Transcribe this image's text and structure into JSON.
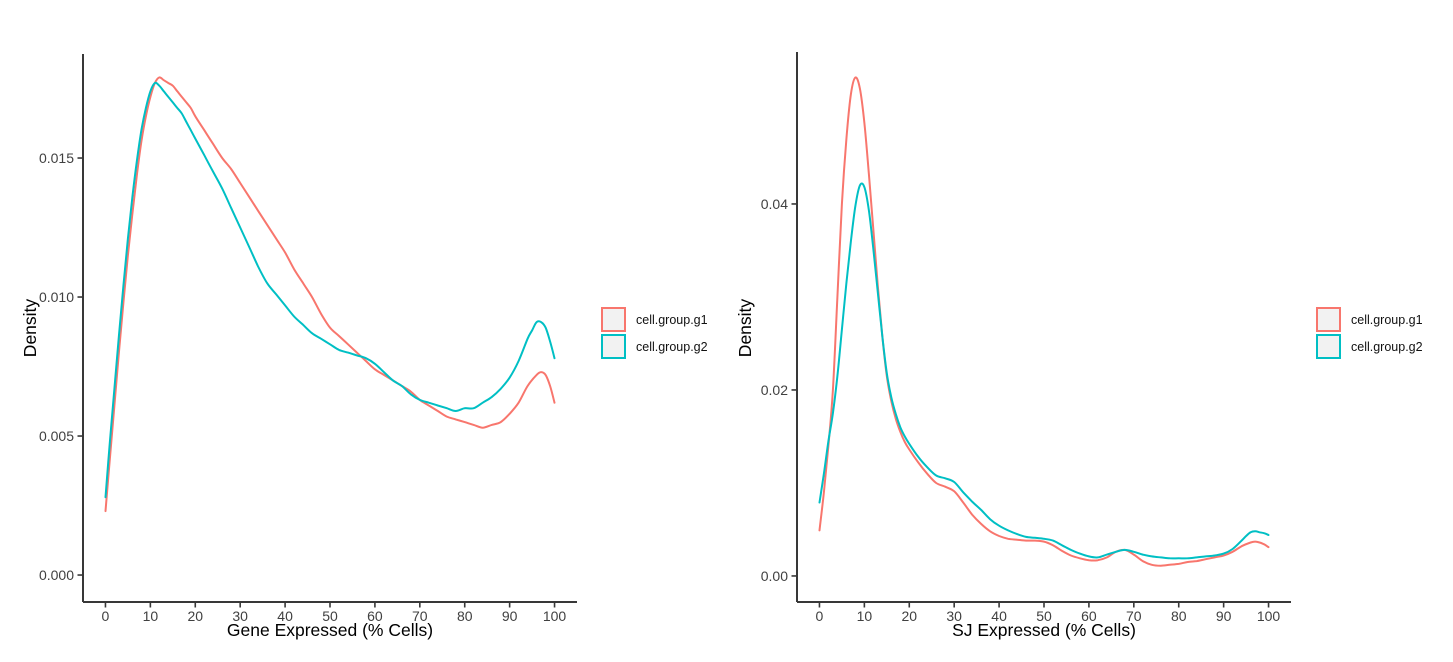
{
  "colors": {
    "g1": "#F8766D",
    "g2": "#00BFC4",
    "axis_line": "#383838",
    "tick_label": "#404040",
    "axis_title": "#000000",
    "legend_key_fill": "#F2F2F2",
    "background": "#FFFFFF"
  },
  "chart_data": [
    {
      "type": "line",
      "subtype": "density",
      "title": "",
      "xlabel": "Gene Expressed (% Cells)",
      "ylabel": "Density",
      "xlim": [
        0,
        100
      ],
      "ylim": [
        0,
        0.0179
      ],
      "grid": false,
      "xticks": [
        0,
        10,
        20,
        30,
        40,
        50,
        60,
        70,
        80,
        90,
        100
      ],
      "yticks": [
        0,
        0.005,
        0.01,
        0.015
      ],
      "ytick_labels": [
        "0.000",
        "0.005",
        "0.010",
        "0.015"
      ],
      "legend": {
        "position": "right",
        "items": [
          {
            "label": "cell.group.g1",
            "color": "#F8766D"
          },
          {
            "label": "cell.group.g2",
            "color": "#00BFC4"
          }
        ]
      },
      "series": [
        {
          "name": "cell.group.g1",
          "color": "#F8766D",
          "points": [
            [
              0,
              0.0023
            ],
            [
              1,
              0.0042
            ],
            [
              2,
              0.0061
            ],
            [
              3,
              0.008
            ],
            [
              4,
              0.0098
            ],
            [
              5,
              0.0115
            ],
            [
              6,
              0.013
            ],
            [
              7,
              0.0144
            ],
            [
              8,
              0.0156
            ],
            [
              9,
              0.0165
            ],
            [
              10,
              0.0172
            ],
            [
              11,
              0.0177
            ],
            [
              12,
              0.0179
            ],
            [
              13,
              0.0178
            ],
            [
              14,
              0.0177
            ],
            [
              15,
              0.0176
            ],
            [
              16,
              0.0174
            ],
            [
              17,
              0.0172
            ],
            [
              18,
              0.017
            ],
            [
              19,
              0.0168
            ],
            [
              20,
              0.0165
            ],
            [
              22,
              0.016
            ],
            [
              24,
              0.0155
            ],
            [
              26,
              0.015
            ],
            [
              28,
              0.0146
            ],
            [
              30,
              0.0141
            ],
            [
              32,
              0.0136
            ],
            [
              34,
              0.0131
            ],
            [
              36,
              0.0126
            ],
            [
              38,
              0.0121
            ],
            [
              40,
              0.0116
            ],
            [
              42,
              0.011
            ],
            [
              44,
              0.0105
            ],
            [
              46,
              0.01
            ],
            [
              48,
              0.0094
            ],
            [
              50,
              0.0089
            ],
            [
              52,
              0.0086
            ],
            [
              54,
              0.0083
            ],
            [
              56,
              0.008
            ],
            [
              58,
              0.0077
            ],
            [
              60,
              0.0074
            ],
            [
              62,
              0.0072
            ],
            [
              64,
              0.007
            ],
            [
              66,
              0.0068
            ],
            [
              68,
              0.0066
            ],
            [
              70,
              0.0063
            ],
            [
              72,
              0.0061
            ],
            [
              74,
              0.0059
            ],
            [
              76,
              0.0057
            ],
            [
              78,
              0.0056
            ],
            [
              80,
              0.0055
            ],
            [
              82,
              0.0054
            ],
            [
              84,
              0.0053
            ],
            [
              86,
              0.0054
            ],
            [
              88,
              0.0055
            ],
            [
              90,
              0.0058
            ],
            [
              92,
              0.0062
            ],
            [
              94,
              0.0068
            ],
            [
              96,
              0.0072
            ],
            [
              97,
              0.0073
            ],
            [
              98,
              0.0072
            ],
            [
              99,
              0.0068
            ],
            [
              100,
              0.0062
            ]
          ]
        },
        {
          "name": "cell.group.g2",
          "color": "#00BFC4",
          "points": [
            [
              0,
              0.0028
            ],
            [
              1,
              0.0048
            ],
            [
              2,
              0.0067
            ],
            [
              3,
              0.0086
            ],
            [
              4,
              0.0104
            ],
            [
              5,
              0.0121
            ],
            [
              6,
              0.0136
            ],
            [
              7,
              0.0149
            ],
            [
              8,
              0.016
            ],
            [
              9,
              0.0168
            ],
            [
              10,
              0.0174
            ],
            [
              11,
              0.0177
            ],
            [
              12,
              0.0176
            ],
            [
              13,
              0.0174
            ],
            [
              14,
              0.0172
            ],
            [
              15,
              0.017
            ],
            [
              16,
              0.0168
            ],
            [
              17,
              0.0166
            ],
            [
              18,
              0.0163
            ],
            [
              19,
              0.016
            ],
            [
              20,
              0.0157
            ],
            [
              22,
              0.0151
            ],
            [
              24,
              0.0145
            ],
            [
              26,
              0.0139
            ],
            [
              28,
              0.0132
            ],
            [
              30,
              0.0125
            ],
            [
              32,
              0.0118
            ],
            [
              34,
              0.0111
            ],
            [
              36,
              0.0105
            ],
            [
              38,
              0.0101
            ],
            [
              40,
              0.0097
            ],
            [
              42,
              0.0093
            ],
            [
              44,
              0.009
            ],
            [
              46,
              0.0087
            ],
            [
              48,
              0.0085
            ],
            [
              50,
              0.0083
            ],
            [
              52,
              0.0081
            ],
            [
              54,
              0.008
            ],
            [
              56,
              0.0079
            ],
            [
              58,
              0.0078
            ],
            [
              60,
              0.0076
            ],
            [
              62,
              0.0073
            ],
            [
              64,
              0.007
            ],
            [
              66,
              0.0068
            ],
            [
              68,
              0.0065
            ],
            [
              70,
              0.0063
            ],
            [
              72,
              0.0062
            ],
            [
              74,
              0.0061
            ],
            [
              76,
              0.006
            ],
            [
              78,
              0.0059
            ],
            [
              80,
              0.006
            ],
            [
              82,
              0.006
            ],
            [
              84,
              0.0062
            ],
            [
              86,
              0.0064
            ],
            [
              88,
              0.0067
            ],
            [
              90,
              0.0071
            ],
            [
              92,
              0.0077
            ],
            [
              94,
              0.0085
            ],
            [
              95,
              0.0088
            ],
            [
              96,
              0.0091
            ],
            [
              97,
              0.0091
            ],
            [
              98,
              0.0089
            ],
            [
              99,
              0.0084
            ],
            [
              100,
              0.0078
            ]
          ]
        }
      ]
    },
    {
      "type": "line",
      "subtype": "density",
      "title": "",
      "xlabel": "SJ Expressed (% Cells)",
      "ylabel": "Density",
      "xlim": [
        0,
        100
      ],
      "ylim": [
        0,
        0.0536
      ],
      "grid": false,
      "xticks": [
        0,
        10,
        20,
        30,
        40,
        50,
        60,
        70,
        80,
        90,
        100
      ],
      "yticks": [
        0,
        0.02,
        0.04
      ],
      "ytick_labels": [
        "0.00",
        "0.02",
        "0.04"
      ],
      "legend": {
        "position": "right",
        "items": [
          {
            "label": "cell.group.g1",
            "color": "#F8766D"
          },
          {
            "label": "cell.group.g2",
            "color": "#00BFC4"
          }
        ]
      },
      "series": [
        {
          "name": "cell.group.g1",
          "color": "#F8766D",
          "points": [
            [
              0,
              0.0049
            ],
            [
              1,
              0.009
            ],
            [
              2,
              0.014
            ],
            [
              3,
              0.02
            ],
            [
              4,
              0.03
            ],
            [
              5,
              0.04
            ],
            [
              6,
              0.047
            ],
            [
              7,
              0.0518
            ],
            [
              8,
              0.0536
            ],
            [
              9,
              0.0524
            ],
            [
              10,
              0.0487
            ],
            [
              11,
              0.0432
            ],
            [
              12,
              0.0373
            ],
            [
              13,
              0.0312
            ],
            [
              14,
              0.0258
            ],
            [
              15,
              0.0215
            ],
            [
              16,
              0.0188
            ],
            [
              17,
              0.0169
            ],
            [
              18,
              0.0155
            ],
            [
              19,
              0.0144
            ],
            [
              20,
              0.0136
            ],
            [
              22,
              0.0122
            ],
            [
              24,
              0.011
            ],
            [
              26,
              0.01
            ],
            [
              28,
              0.0096
            ],
            [
              30,
              0.0091
            ],
            [
              32,
              0.0079
            ],
            [
              34,
              0.0066
            ],
            [
              36,
              0.0056
            ],
            [
              38,
              0.0048
            ],
            [
              40,
              0.0043
            ],
            [
              42,
              0.004
            ],
            [
              44,
              0.0039
            ],
            [
              46,
              0.0038
            ],
            [
              48,
              0.0038
            ],
            [
              50,
              0.0037
            ],
            [
              52,
              0.0033
            ],
            [
              54,
              0.0027
            ],
            [
              56,
              0.0022
            ],
            [
              58,
              0.0019
            ],
            [
              60,
              0.0017
            ],
            [
              62,
              0.0017
            ],
            [
              64,
              0.002
            ],
            [
              66,
              0.0026
            ],
            [
              68,
              0.0028
            ],
            [
              70,
              0.0023
            ],
            [
              72,
              0.0016
            ],
            [
              74,
              0.0012
            ],
            [
              76,
              0.0011
            ],
            [
              78,
              0.0012
            ],
            [
              80,
              0.0013
            ],
            [
              82,
              0.0015
            ],
            [
              84,
              0.0016
            ],
            [
              86,
              0.0018
            ],
            [
              88,
              0.002
            ],
            [
              90,
              0.0022
            ],
            [
              92,
              0.0026
            ],
            [
              94,
              0.0032
            ],
            [
              96,
              0.0036
            ],
            [
              97,
              0.0037
            ],
            [
              98,
              0.0036
            ],
            [
              99,
              0.0034
            ],
            [
              100,
              0.0031
            ]
          ]
        },
        {
          "name": "cell.group.g2",
          "color": "#00BFC4",
          "points": [
            [
              0,
              0.0079
            ],
            [
              1,
              0.011
            ],
            [
              2,
              0.0145
            ],
            [
              3,
              0.0175
            ],
            [
              4,
              0.0215
            ],
            [
              5,
              0.0265
            ],
            [
              6,
              0.0315
            ],
            [
              7,
              0.036
            ],
            [
              8,
              0.0398
            ],
            [
              9,
              0.042
            ],
            [
              10,
              0.0418
            ],
            [
              11,
              0.0393
            ],
            [
              12,
              0.0352
            ],
            [
              13,
              0.0305
            ],
            [
              14,
              0.0258
            ],
            [
              15,
              0.0218
            ],
            [
              16,
              0.0192
            ],
            [
              17,
              0.0174
            ],
            [
              18,
              0.016
            ],
            [
              19,
              0.015
            ],
            [
              20,
              0.0142
            ],
            [
              22,
              0.0128
            ],
            [
              24,
              0.0117
            ],
            [
              26,
              0.0108
            ],
            [
              28,
              0.0105
            ],
            [
              30,
              0.0101
            ],
            [
              32,
              0.009
            ],
            [
              34,
              0.008
            ],
            [
              36,
              0.0071
            ],
            [
              38,
              0.0061
            ],
            [
              40,
              0.0054
            ],
            [
              42,
              0.0049
            ],
            [
              44,
              0.0045
            ],
            [
              46,
              0.0042
            ],
            [
              48,
              0.0041
            ],
            [
              50,
              0.004
            ],
            [
              52,
              0.0038
            ],
            [
              54,
              0.0033
            ],
            [
              56,
              0.0028
            ],
            [
              58,
              0.0024
            ],
            [
              60,
              0.0021
            ],
            [
              62,
              0.002
            ],
            [
              64,
              0.0023
            ],
            [
              66,
              0.0026
            ],
            [
              68,
              0.0028
            ],
            [
              70,
              0.0026
            ],
            [
              72,
              0.0023
            ],
            [
              74,
              0.0021
            ],
            [
              76,
              0.002
            ],
            [
              78,
              0.0019
            ],
            [
              80,
              0.0019
            ],
            [
              82,
              0.0019
            ],
            [
              84,
              0.002
            ],
            [
              86,
              0.0021
            ],
            [
              88,
              0.0022
            ],
            [
              90,
              0.0024
            ],
            [
              92,
              0.0029
            ],
            [
              94,
              0.0038
            ],
            [
              95,
              0.0043
            ],
            [
              96,
              0.0047
            ],
            [
              97,
              0.0048
            ],
            [
              98,
              0.0047
            ],
            [
              99,
              0.0046
            ],
            [
              100,
              0.0044
            ]
          ]
        }
      ]
    }
  ]
}
